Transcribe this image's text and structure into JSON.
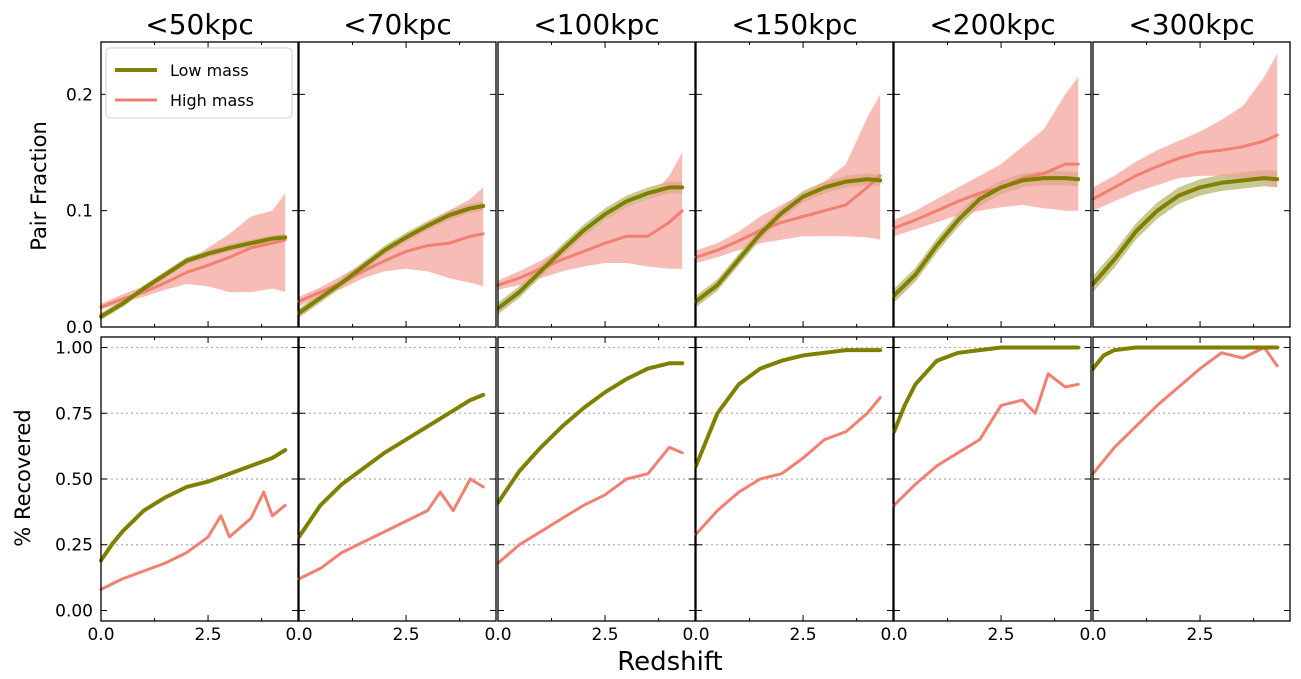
{
  "figure": {
    "xlabel": "Redshift",
    "top_ylabel": "Pair Fraction",
    "bottom_ylabel": "% Recovered",
    "top_yticks": [
      "0.0",
      "0.1",
      "0.2"
    ],
    "bottom_yticks": [
      "0.00",
      "0.25",
      "0.50",
      "0.75",
      "1.00"
    ],
    "xticks": [
      "0.0",
      "2.5"
    ],
    "legend": {
      "placement": "top-left of first panel",
      "entries": [
        "Low mass",
        "High mass"
      ]
    },
    "colors": {
      "low": "#808000",
      "high": "#f08070",
      "band_high": "#f4a095",
      "band_low": "#9a9a3a"
    }
  },
  "chart_data": [
    {
      "type": "line",
      "panel": "pair-fraction",
      "title": "<50kpc",
      "xlim": [
        0,
        4.6
      ],
      "ylim": [
        0,
        0.245
      ],
      "grid": false,
      "series": [
        {
          "name": "Low mass",
          "x": [
            0,
            0.5,
            1,
            1.5,
            2,
            2.5,
            3,
            3.5,
            4,
            4.3
          ],
          "y": [
            0.009,
            0.02,
            0.033,
            0.045,
            0.057,
            0.063,
            0.068,
            0.072,
            0.076,
            0.077
          ],
          "band": 0.003
        },
        {
          "name": "High mass",
          "x": [
            0,
            0.5,
            1,
            1.5,
            2,
            2.5,
            3,
            3.5,
            4,
            4.3
          ],
          "y": [
            0.017,
            0.024,
            0.03,
            0.038,
            0.047,
            0.053,
            0.06,
            0.068,
            0.072,
            0.075
          ],
          "lower": [
            0.015,
            0.021,
            0.026,
            0.032,
            0.037,
            0.035,
            0.03,
            0.03,
            0.033,
            0.03
          ],
          "upper": [
            0.02,
            0.028,
            0.035,
            0.045,
            0.056,
            0.068,
            0.08,
            0.095,
            0.1,
            0.115
          ]
        }
      ]
    },
    {
      "type": "line",
      "panel": "pair-fraction",
      "title": "<70kpc",
      "xlim": [
        0,
        4.6
      ],
      "ylim": [
        0,
        0.245
      ],
      "grid": false,
      "series": [
        {
          "name": "Low mass",
          "x": [
            0,
            0.5,
            1,
            1.5,
            2,
            2.5,
            3,
            3.5,
            4,
            4.3
          ],
          "y": [
            0.012,
            0.025,
            0.038,
            0.052,
            0.066,
            0.077,
            0.087,
            0.096,
            0.102,
            0.104
          ],
          "band": 0.004
        },
        {
          "name": "High mass",
          "x": [
            0,
            0.5,
            1,
            1.5,
            2,
            2.5,
            3,
            3.5,
            4,
            4.3
          ],
          "y": [
            0.022,
            0.03,
            0.038,
            0.048,
            0.057,
            0.065,
            0.07,
            0.072,
            0.078,
            0.08
          ],
          "lower": [
            0.018,
            0.026,
            0.033,
            0.042,
            0.048,
            0.05,
            0.048,
            0.042,
            0.038,
            0.035
          ],
          "upper": [
            0.026,
            0.034,
            0.044,
            0.055,
            0.066,
            0.078,
            0.09,
            0.1,
            0.11,
            0.12
          ]
        }
      ]
    },
    {
      "type": "line",
      "panel": "pair-fraction",
      "title": "<100kpc",
      "xlim": [
        0,
        4.6
      ],
      "ylim": [
        0,
        0.245
      ],
      "grid": false,
      "series": [
        {
          "name": "Low mass",
          "x": [
            0,
            0.5,
            1,
            1.5,
            2,
            2.5,
            3,
            3.5,
            4,
            4.3
          ],
          "y": [
            0.016,
            0.03,
            0.048,
            0.066,
            0.083,
            0.097,
            0.108,
            0.115,
            0.12,
            0.12
          ],
          "band": 0.005
        },
        {
          "name": "High mass",
          "x": [
            0,
            0.5,
            1,
            1.5,
            2,
            2.5,
            3,
            3.5,
            4,
            4.3
          ],
          "y": [
            0.036,
            0.042,
            0.05,
            0.058,
            0.065,
            0.072,
            0.078,
            0.078,
            0.09,
            0.1
          ],
          "lower": [
            0.032,
            0.036,
            0.042,
            0.048,
            0.052,
            0.055,
            0.055,
            0.052,
            0.05,
            0.05
          ],
          "upper": [
            0.04,
            0.048,
            0.057,
            0.068,
            0.08,
            0.092,
            0.105,
            0.11,
            0.13,
            0.15
          ]
        }
      ]
    },
    {
      "type": "line",
      "panel": "pair-fraction",
      "title": "<150kpc",
      "xlim": [
        0,
        4.6
      ],
      "ylim": [
        0,
        0.245
      ],
      "grid": false,
      "series": [
        {
          "name": "Low mass",
          "x": [
            0,
            0.5,
            1,
            1.5,
            2,
            2.5,
            3,
            3.5,
            4,
            4.3
          ],
          "y": [
            0.022,
            0.036,
            0.058,
            0.08,
            0.098,
            0.112,
            0.12,
            0.125,
            0.127,
            0.126
          ],
          "band": 0.005
        },
        {
          "name": "High mass",
          "x": [
            0,
            0.5,
            1,
            1.5,
            2,
            2.5,
            3,
            3.5,
            4,
            4.3
          ],
          "y": [
            0.06,
            0.066,
            0.074,
            0.083,
            0.09,
            0.095,
            0.1,
            0.105,
            0.12,
            0.13
          ],
          "lower": [
            0.055,
            0.06,
            0.066,
            0.072,
            0.075,
            0.078,
            0.078,
            0.078,
            0.077,
            0.075
          ],
          "upper": [
            0.066,
            0.072,
            0.082,
            0.095,
            0.105,
            0.115,
            0.125,
            0.14,
            0.18,
            0.2
          ]
        }
      ]
    },
    {
      "type": "line",
      "panel": "pair-fraction",
      "title": "<200kpc",
      "xlim": [
        0,
        4.6
      ],
      "ylim": [
        0,
        0.245
      ],
      "grid": false,
      "series": [
        {
          "name": "Low mass",
          "x": [
            0,
            0.5,
            1,
            1.5,
            2,
            2.5,
            3,
            3.5,
            4,
            4.3
          ],
          "y": [
            0.027,
            0.045,
            0.07,
            0.092,
            0.11,
            0.12,
            0.126,
            0.128,
            0.128,
            0.127
          ],
          "band": 0.006
        },
        {
          "name": "High mass",
          "x": [
            0,
            0.5,
            1,
            1.5,
            2,
            2.5,
            3,
            3.5,
            4,
            4.3
          ],
          "y": [
            0.085,
            0.092,
            0.1,
            0.108,
            0.115,
            0.12,
            0.128,
            0.132,
            0.14,
            0.14
          ],
          "lower": [
            0.078,
            0.084,
            0.09,
            0.096,
            0.1,
            0.103,
            0.105,
            0.102,
            0.1,
            0.1
          ],
          "upper": [
            0.092,
            0.1,
            0.11,
            0.12,
            0.13,
            0.14,
            0.155,
            0.17,
            0.2,
            0.215
          ]
        }
      ]
    },
    {
      "type": "line",
      "panel": "pair-fraction",
      "title": "<300kpc",
      "xlim": [
        0,
        4.6
      ],
      "ylim": [
        0,
        0.245
      ],
      "grid": false,
      "series": [
        {
          "name": "Low mass",
          "x": [
            0,
            0.5,
            1,
            1.5,
            2,
            2.5,
            3,
            3.5,
            4,
            4.3
          ],
          "y": [
            0.037,
            0.058,
            0.082,
            0.1,
            0.113,
            0.12,
            0.124,
            0.126,
            0.128,
            0.127
          ],
          "band": 0.007
        },
        {
          "name": "High mass",
          "x": [
            0,
            0.5,
            1,
            1.5,
            2,
            2.5,
            3,
            3.5,
            4,
            4.3
          ],
          "y": [
            0.11,
            0.12,
            0.13,
            0.138,
            0.145,
            0.15,
            0.152,
            0.155,
            0.16,
            0.165
          ],
          "lower": [
            0.1,
            0.108,
            0.116,
            0.122,
            0.128,
            0.13,
            0.13,
            0.128,
            0.125,
            0.12
          ],
          "upper": [
            0.12,
            0.13,
            0.142,
            0.152,
            0.16,
            0.168,
            0.178,
            0.19,
            0.215,
            0.235
          ]
        }
      ]
    },
    {
      "type": "line",
      "panel": "recovered",
      "title": "<50kpc",
      "xlim": [
        0,
        4.6
      ],
      "ylim": [
        -0.04,
        1.04
      ],
      "grid": "dotted at 0.25 steps",
      "series": [
        {
          "name": "Low mass",
          "x": [
            0,
            0.25,
            0.5,
            1,
            1.5,
            2,
            2.5,
            3,
            3.5,
            4,
            4.3
          ],
          "y": [
            0.19,
            0.25,
            0.3,
            0.38,
            0.43,
            0.47,
            0.49,
            0.52,
            0.55,
            0.58,
            0.61
          ]
        },
        {
          "name": "High mass",
          "x": [
            0,
            0.5,
            1,
            1.5,
            2,
            2.5,
            2.8,
            3,
            3.5,
            3.8,
            4,
            4.3
          ],
          "y": [
            0.08,
            0.12,
            0.15,
            0.18,
            0.22,
            0.28,
            0.36,
            0.28,
            0.35,
            0.45,
            0.36,
            0.4
          ]
        }
      ]
    },
    {
      "type": "line",
      "panel": "recovered",
      "title": "<70kpc",
      "xlim": [
        0,
        4.6
      ],
      "ylim": [
        -0.04,
        1.04
      ],
      "grid": "dotted at 0.25 steps",
      "series": [
        {
          "name": "Low mass",
          "x": [
            0,
            0.25,
            0.5,
            1,
            1.5,
            2,
            2.5,
            3,
            3.5,
            4,
            4.3
          ],
          "y": [
            0.28,
            0.34,
            0.4,
            0.48,
            0.54,
            0.6,
            0.65,
            0.7,
            0.75,
            0.8,
            0.82
          ]
        },
        {
          "name": "High mass",
          "x": [
            0,
            0.5,
            1,
            1.5,
            2,
            2.5,
            3,
            3.3,
            3.6,
            4,
            4.3
          ],
          "y": [
            0.12,
            0.16,
            0.22,
            0.26,
            0.3,
            0.34,
            0.38,
            0.45,
            0.38,
            0.5,
            0.47
          ]
        }
      ]
    },
    {
      "type": "line",
      "panel": "recovered",
      "title": "<100kpc",
      "xlim": [
        0,
        4.6
      ],
      "ylim": [
        -0.04,
        1.04
      ],
      "grid": "dotted at 0.25 steps",
      "series": [
        {
          "name": "Low mass",
          "x": [
            0,
            0.25,
            0.5,
            1,
            1.5,
            2,
            2.5,
            3,
            3.5,
            4,
            4.3
          ],
          "y": [
            0.41,
            0.47,
            0.53,
            0.62,
            0.7,
            0.77,
            0.83,
            0.88,
            0.92,
            0.94,
            0.94
          ]
        },
        {
          "name": "High mass",
          "x": [
            0,
            0.5,
            1,
            1.5,
            2,
            2.5,
            3,
            3.5,
            4,
            4.3
          ],
          "y": [
            0.18,
            0.25,
            0.3,
            0.35,
            0.4,
            0.44,
            0.5,
            0.52,
            0.62,
            0.6
          ]
        }
      ]
    },
    {
      "type": "line",
      "panel": "recovered",
      "title": "<150kpc",
      "xlim": [
        0,
        4.6
      ],
      "ylim": [
        -0.04,
        1.04
      ],
      "grid": "dotted at 0.25 steps",
      "series": [
        {
          "name": "Low mass",
          "x": [
            0,
            0.25,
            0.5,
            1,
            1.5,
            2,
            2.5,
            3,
            3.5,
            4,
            4.3
          ],
          "y": [
            0.55,
            0.65,
            0.75,
            0.86,
            0.92,
            0.95,
            0.97,
            0.98,
            0.99,
            0.99,
            0.99
          ]
        },
        {
          "name": "High mass",
          "x": [
            0,
            0.5,
            1,
            1.5,
            2,
            2.5,
            3,
            3.5,
            4,
            4.3
          ],
          "y": [
            0.29,
            0.38,
            0.45,
            0.5,
            0.52,
            0.58,
            0.65,
            0.68,
            0.75,
            0.81
          ]
        }
      ]
    },
    {
      "type": "line",
      "panel": "recovered",
      "title": "<200kpc",
      "xlim": [
        0,
        4.6
      ],
      "ylim": [
        -0.04,
        1.04
      ],
      "grid": "dotted at 0.25 steps",
      "series": [
        {
          "name": "Low mass",
          "x": [
            0,
            0.25,
            0.5,
            1,
            1.5,
            2,
            2.5,
            3,
            3.5,
            4,
            4.3
          ],
          "y": [
            0.68,
            0.78,
            0.86,
            0.95,
            0.98,
            0.99,
            1.0,
            1.0,
            1.0,
            1.0,
            1.0
          ]
        },
        {
          "name": "High mass",
          "x": [
            0,
            0.5,
            1,
            1.5,
            2,
            2.5,
            3,
            3.3,
            3.6,
            4,
            4.3
          ],
          "y": [
            0.4,
            0.48,
            0.55,
            0.6,
            0.65,
            0.78,
            0.8,
            0.75,
            0.9,
            0.85,
            0.86
          ]
        }
      ]
    },
    {
      "type": "line",
      "panel": "recovered",
      "title": "<300kpc",
      "xlim": [
        0,
        4.6
      ],
      "ylim": [
        -0.04,
        1.04
      ],
      "grid": "dotted at 0.25 steps",
      "series": [
        {
          "name": "Low mass",
          "x": [
            0,
            0.25,
            0.5,
            1,
            1.5,
            2,
            2.5,
            3,
            3.5,
            4,
            4.3
          ],
          "y": [
            0.92,
            0.97,
            0.99,
            1.0,
            1.0,
            1.0,
            1.0,
            1.0,
            1.0,
            1.0,
            1.0
          ]
        },
        {
          "name": "High mass",
          "x": [
            0,
            0.5,
            1,
            1.5,
            2,
            2.5,
            3,
            3.5,
            4,
            4.3
          ],
          "y": [
            0.52,
            0.62,
            0.7,
            0.78,
            0.85,
            0.92,
            0.98,
            0.96,
            1.0,
            0.93
          ]
        }
      ]
    }
  ]
}
